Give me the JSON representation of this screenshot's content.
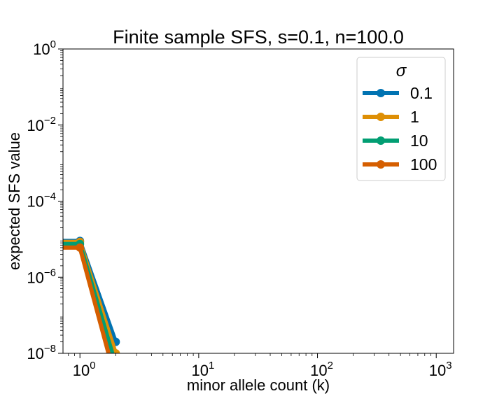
{
  "chart_data": {
    "type": "line",
    "title": "Finite sample SFS, s=0.1, n=100.0",
    "xlabel": "minor allele count (k)",
    "ylabel": "expected SFS value",
    "x_scale": "log",
    "y_scale": "log",
    "xlim": [
      0.72,
      1400
    ],
    "ylim": [
      1e-08,
      1
    ],
    "x_ticks": [
      {
        "value": 1,
        "base": "10",
        "exp": "0"
      },
      {
        "value": 10,
        "base": "10",
        "exp": "1"
      },
      {
        "value": 100,
        "base": "10",
        "exp": "2"
      },
      {
        "value": 1000,
        "base": "10",
        "exp": "3"
      }
    ],
    "y_ticks": [
      {
        "value": 1,
        "base": "10",
        "exp": "0"
      },
      {
        "value": 0.01,
        "base": "10",
        "exp": "−2"
      },
      {
        "value": 0.0001,
        "base": "10",
        "exp": "−4"
      },
      {
        "value": 1e-06,
        "base": "10",
        "exp": "−6"
      },
      {
        "value": 1e-08,
        "base": "10",
        "exp": "−8"
      }
    ],
    "legend": {
      "title": "σ",
      "placement": "top-right"
    },
    "series": [
      {
        "name": "0.1",
        "color": "#0173b2",
        "x": [
          0,
          1,
          2
        ],
        "y": [
          9e-06,
          9e-06,
          2e-08
        ]
      },
      {
        "name": "1",
        "color": "#de8f05",
        "x": [
          0,
          1,
          2
        ],
        "y": [
          8.5e-06,
          8.5e-06,
          1e-08
        ]
      },
      {
        "name": "10",
        "color": "#029e73",
        "x": [
          0,
          1,
          2
        ],
        "y": [
          7.5e-06,
          7.5e-06,
          5e-09
        ]
      },
      {
        "name": "100",
        "color": "#d55e00",
        "x": [
          0,
          1,
          2
        ],
        "y": [
          6e-06,
          6e-06,
          2e-09
        ]
      }
    ]
  }
}
